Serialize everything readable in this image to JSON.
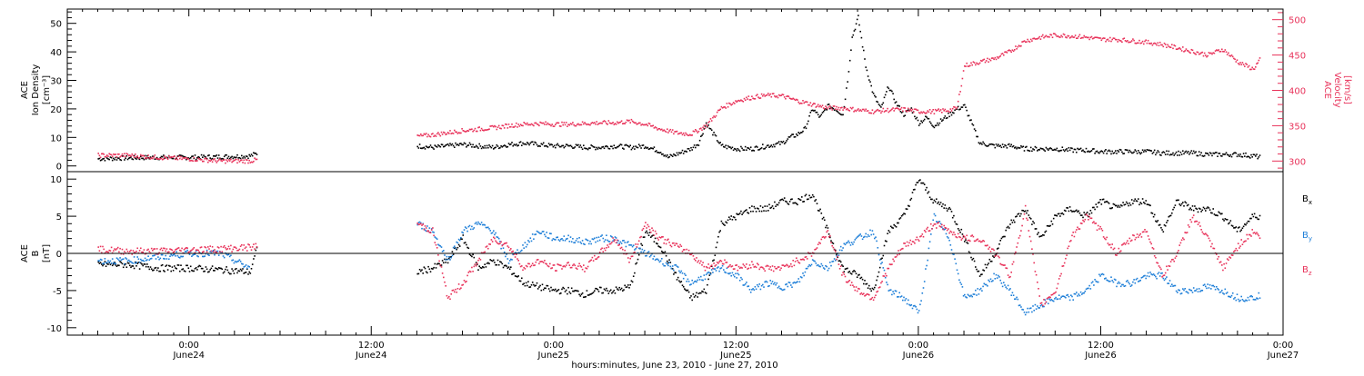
{
  "colors": {
    "black": "#000000",
    "pink": "#e8325a",
    "blue": "#1e7fd8"
  },
  "chart_data": [
    {
      "type": "scatter",
      "panel": "plasma",
      "ylabel_left": [
        "ACE",
        "Ion Density",
        "[cm⁻³]"
      ],
      "ylabel_right": [
        "ACE",
        "Velocity",
        "[km/s]"
      ],
      "ylim_left": [
        -2,
        55
      ],
      "yticks_left": [
        "0",
        "10",
        "20",
        "30",
        "40",
        "50"
      ],
      "ylim_right": [
        285,
        515
      ],
      "yticks_right": [
        "300",
        "350",
        "400",
        "450",
        "500"
      ],
      "series": [
        {
          "axis": "left",
          "color": "#000000",
          "x": [
            -6,
            -4,
            -2,
            0,
            2,
            4,
            4.5,
            15,
            16,
            17,
            18,
            19,
            20,
            21,
            22,
            23,
            24,
            25,
            26,
            27,
            28,
            29,
            30,
            31,
            31.5,
            32,
            33,
            33.5,
            34,
            35,
            36,
            37,
            38,
            39,
            39.5,
            40,
            40.5,
            41,
            41.5,
            42,
            42.5,
            43,
            43.3,
            43.6,
            44,
            44.5,
            45,
            45.5,
            46,
            46.5,
            47,
            47.5,
            48,
            48.5,
            49,
            49.5,
            50,
            50.5,
            51,
            52,
            53,
            54,
            55,
            56,
            57,
            58,
            59,
            60,
            61,
            62,
            63,
            64,
            65,
            66,
            67,
            68,
            69,
            70,
            70.5
          ],
          "y": [
            2.5,
            2.8,
            3,
            3,
            3.2,
            3.5,
            4.5,
            7,
            6.5,
            7,
            7.5,
            7,
            6.5,
            7.5,
            8,
            7.5,
            7,
            7,
            6.5,
            6.5,
            7,
            6.5,
            7,
            5,
            3,
            4,
            6,
            8,
            15,
            7,
            6,
            6,
            7,
            8,
            10,
            11,
            13,
            20,
            17,
            21,
            20,
            18,
            30,
            45,
            52,
            35,
            25,
            20,
            28,
            22,
            18,
            20,
            15,
            17,
            14,
            16,
            18,
            20,
            21,
            8,
            7,
            7,
            6,
            6,
            6,
            5.5,
            5.5,
            5,
            5,
            5,
            5,
            4.5,
            4.5,
            4.5,
            4,
            4,
            4,
            3.5,
            3
          ]
        },
        {
          "axis": "right",
          "color": "#e8325a",
          "x": [
            -6,
            -4,
            -2,
            0,
            2,
            4,
            4.5,
            15,
            16,
            17,
            18,
            19,
            20,
            21,
            22,
            23,
            24,
            25,
            26,
            27,
            28,
            29,
            30,
            31,
            32,
            33,
            34,
            35,
            36,
            37,
            38,
            39,
            40,
            41,
            42,
            43,
            44,
            45,
            46,
            47,
            48,
            49,
            50,
            50.5,
            51,
            52,
            53,
            54,
            55,
            56,
            57,
            58,
            59,
            60,
            61,
            62,
            63,
            64,
            65,
            66,
            67,
            68,
            69,
            70,
            70.5
          ],
          "y": [
            308,
            308,
            305,
            303,
            300,
            300,
            302,
            335,
            337,
            340,
            343,
            345,
            347,
            350,
            352,
            353,
            352,
            352,
            353,
            354,
            354,
            356,
            352,
            345,
            340,
            338,
            350,
            375,
            385,
            390,
            393,
            392,
            385,
            380,
            375,
            375,
            372,
            370,
            372,
            373,
            370,
            370,
            372,
            375,
            435,
            440,
            445,
            455,
            470,
            475,
            478,
            477,
            475,
            472,
            472,
            470,
            468,
            465,
            460,
            455,
            450,
            458,
            440,
            430,
            445
          ]
        }
      ]
    },
    {
      "type": "scatter",
      "panel": "magnetic-field",
      "ylabel_left": [
        "ACE",
        "B",
        "[nT]"
      ],
      "ylim": [
        -11,
        11
      ],
      "yticks": [
        "-10",
        "-5",
        "0",
        "5",
        "10"
      ],
      "legend": [
        "B",
        "B",
        "B"
      ],
      "legend_sub": [
        "x",
        "y",
        "z"
      ],
      "series": [
        {
          "color": "#000000",
          "x": [
            -6,
            -4,
            -2,
            0,
            2,
            4,
            4.5,
            15,
            16,
            17,
            18,
            19,
            20,
            21,
            22,
            23,
            24,
            25,
            26,
            27,
            28,
            29,
            30,
            31,
            32,
            33,
            34,
            35,
            36,
            37,
            38,
            39,
            40,
            41,
            42,
            43,
            44,
            45,
            46,
            47,
            48,
            49,
            50,
            51,
            52,
            53,
            54,
            55,
            56,
            57,
            58,
            59,
            60,
            61,
            62,
            63,
            64,
            65,
            66,
            67,
            68,
            69,
            70,
            70.5
          ],
          "y": [
            -1.5,
            -1.5,
            -2,
            -2,
            -2.2,
            -2.5,
            1,
            -2.5,
            -2,
            -1,
            2,
            -2,
            -1,
            -2,
            -4,
            -4.5,
            -5,
            -5,
            -5.5,
            -5,
            -5,
            -4.5,
            3,
            1,
            -3,
            -6,
            -5,
            4,
            5,
            6,
            6,
            7,
            7,
            8,
            3,
            -2,
            -3,
            -5,
            3,
            5,
            10,
            7,
            6,
            2,
            -3,
            0,
            4,
            6,
            2,
            5,
            6,
            5,
            7,
            6,
            7,
            7,
            3,
            7,
            6,
            6,
            5,
            3,
            5,
            5
          ]
        },
        {
          "color": "#1e7fd8",
          "x": [
            -6,
            -4,
            -2,
            0,
            2,
            4,
            15,
            16,
            17,
            18,
            19,
            20,
            21,
            22,
            23,
            24,
            25,
            26,
            27,
            28,
            29,
            30,
            31,
            32,
            33,
            34,
            35,
            36,
            37,
            38,
            39,
            40,
            41,
            42,
            43,
            44,
            45,
            46,
            47,
            48,
            49,
            50,
            51,
            52,
            53,
            54,
            55,
            56,
            57,
            58,
            59,
            60,
            61,
            62,
            63,
            64,
            65,
            66,
            67,
            68,
            69,
            70,
            70.5
          ],
          "y": [
            -1,
            -1,
            -0.5,
            0,
            0,
            -2,
            4,
            3,
            -1,
            3,
            4,
            3,
            -1,
            1,
            3,
            2,
            2,
            1.5,
            2,
            2,
            1,
            0,
            -1,
            -2,
            -4,
            -3,
            -2,
            -3,
            -5,
            -4,
            -4.5,
            -4,
            -1,
            -2,
            1,
            2,
            3,
            -5,
            -6,
            -8,
            5,
            2,
            -6,
            -5,
            -3,
            -5,
            -8,
            -7,
            -6,
            -6,
            -5,
            -3,
            -4,
            -4,
            -3,
            -3,
            -5,
            -5,
            -4.5,
            -5,
            -6,
            -6,
            -5.5
          ]
        },
        {
          "color": "#e8325a",
          "x": [
            -6,
            -4,
            -2,
            0,
            2,
            4,
            4.5,
            15,
            16,
            17,
            18,
            19,
            20,
            21,
            22,
            23,
            24,
            25,
            26,
            27,
            28,
            29,
            30,
            31,
            32,
            33,
            34,
            35,
            36,
            37,
            38,
            39,
            40,
            41,
            42,
            43,
            44,
            45,
            46,
            47,
            48,
            49,
            50,
            51,
            52,
            53,
            54,
            55,
            56,
            57,
            58,
            59,
            60,
            61,
            62,
            63,
            64,
            65,
            66,
            67,
            68,
            69,
            70,
            70.5
          ],
          "y": [
            0.5,
            0.3,
            0.3,
            0.5,
            0.6,
            0.8,
            1,
            4,
            3,
            -6,
            -4,
            -1,
            2,
            1,
            -2,
            -1,
            -2,
            -1.5,
            -2,
            0,
            2,
            -1,
            4,
            2,
            1,
            0,
            -2,
            -1,
            -2,
            -1.5,
            -2,
            -2,
            -1,
            0,
            3,
            -3,
            -5,
            -6,
            -2,
            1,
            2,
            4,
            3,
            2,
            2,
            0,
            -3,
            6,
            -7,
            -5,
            2,
            5,
            3,
            0,
            2,
            3,
            -3,
            0,
            5,
            2,
            -2,
            1,
            3,
            2
          ]
        }
      ]
    }
  ],
  "xaxis": {
    "range_hours": [
      -8,
      72
    ],
    "ticks_hours": [
      0,
      12,
      24,
      36,
      48,
      60,
      72
    ],
    "tick_time": [
      "0:00",
      "12:00",
      "0:00",
      "12:00",
      "0:00",
      "12:00",
      "0:00"
    ],
    "tick_date": [
      "June24",
      "June24",
      "June25",
      "June25",
      "June26",
      "June26",
      "June27"
    ],
    "label": "hours:minutes, June 23, 2010 - June 27, 2010"
  }
}
